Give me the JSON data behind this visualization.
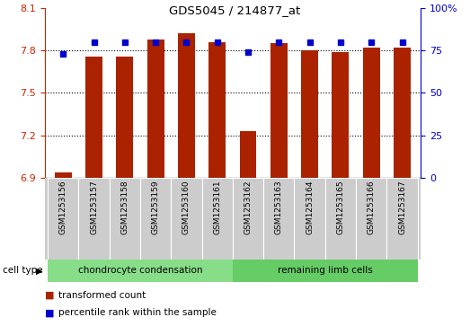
{
  "title": "GDS5045 / 214877_at",
  "samples": [
    "GSM1253156",
    "GSM1253157",
    "GSM1253158",
    "GSM1253159",
    "GSM1253160",
    "GSM1253161",
    "GSM1253162",
    "GSM1253163",
    "GSM1253164",
    "GSM1253165",
    "GSM1253166",
    "GSM1253167"
  ],
  "red_values": [
    6.94,
    7.76,
    7.76,
    7.88,
    7.92,
    7.86,
    7.23,
    7.85,
    7.8,
    7.79,
    7.82,
    7.82
  ],
  "blue_values": [
    73,
    80,
    80,
    80,
    80,
    80,
    74,
    80,
    80,
    80,
    80,
    80
  ],
  "ylim_left": [
    6.9,
    8.1
  ],
  "ylim_right": [
    0,
    100
  ],
  "yticks_left": [
    6.9,
    7.2,
    7.5,
    7.8,
    8.1
  ],
  "yticks_right": [
    0,
    25,
    50,
    75,
    100
  ],
  "hlines": [
    7.2,
    7.5,
    7.8
  ],
  "bar_color": "#aa2200",
  "dot_color": "#0000cc",
  "bar_bottom": 6.9,
  "cell_types": [
    {
      "label": "chondrocyte condensation",
      "start": 0,
      "end": 6,
      "color": "#88dd88"
    },
    {
      "label": "remaining limb cells",
      "start": 6,
      "end": 12,
      "color": "#66cc66"
    }
  ],
  "cell_type_label": "cell type",
  "legend_red": "transformed count",
  "legend_blue": "percentile rank within the sample",
  "plot_bg": "#ffffff",
  "gray_box_color": "#cccccc"
}
